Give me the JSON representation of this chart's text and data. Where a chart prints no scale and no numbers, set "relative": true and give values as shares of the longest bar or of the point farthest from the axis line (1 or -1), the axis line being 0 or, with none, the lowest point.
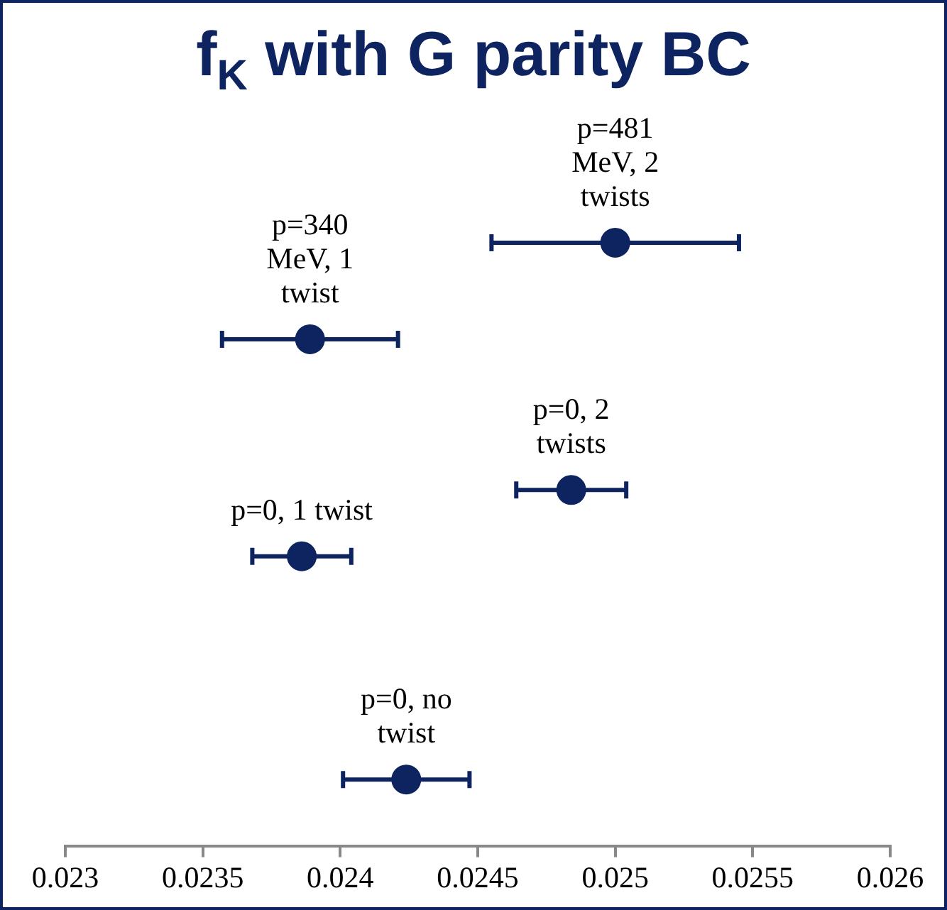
{
  "chart_data": {
    "type": "scatter",
    "title": "f$_{K}$ with G parity BC",
    "relative": true,
    "marker": "circle",
    "grid": false,
    "legend": false,
    "tick_labels": "x",
    "x": [
      0.02424,
      0.02386,
      0.02389,
      0.02484,
      0.025
    ],
    "xerrors": [
      0.00023,
      0.00018,
      0.00032,
      0.0002,
      0.00045
    ],
    "values": [
      0.11,
      0.48,
      0.84,
      0.59,
      1
    ],
    "color": "#0d2460",
    "xlim": [
      0.023,
      0.026
    ],
    "xticks": [
      0.023,
      0.0235,
      0.024,
      0.0245,
      0.025,
      0.0255,
      0.026
    ],
    "annotations": [
      {
        "text": "p=0, no twist",
        "x": 0.02424,
        "y": 0.11
      },
      {
        "text": "p=0, 1 twist",
        "x": 0.02386,
        "y": 0.48
      },
      {
        "text": "p=340 MeV, 1 twist",
        "x": 0.02389,
        "y": 0.84
      },
      {
        "text": "p=0, 2 twists",
        "x": 0.02484,
        "y": 0.59
      },
      {
        "text": "p=481 MeV, 2 twists",
        "x": 0.025,
        "y": 1
      }
    ]
  }
}
